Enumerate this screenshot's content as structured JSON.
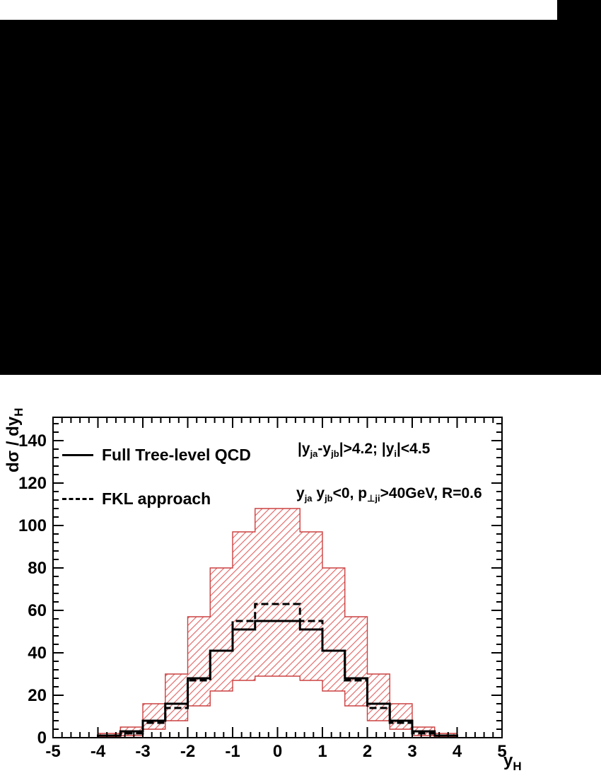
{
  "page": {
    "top_mask_color": "#000000",
    "background_color": "#ffffff"
  },
  "chart_data": {
    "type": "histogram-step",
    "title": "",
    "xlabel": {
      "main": "y",
      "sub": "H"
    },
    "ylabel": {
      "main": "dσ / dy",
      "sub": "H"
    },
    "xlim": [
      -5,
      5
    ],
    "ylim": [
      0,
      151
    ],
    "x_major_ticks": [
      -5,
      -4,
      -3,
      -2,
      -1,
      0,
      1,
      2,
      3,
      4,
      5
    ],
    "x_minor_step": 0.2,
    "y_major_ticks": [
      0,
      20,
      40,
      60,
      80,
      100,
      120,
      140
    ],
    "y_minor_step": 4,
    "grid": false,
    "legend_position": "top-left",
    "bin_edges": [
      -5,
      -4.5,
      -4,
      -3.5,
      -3,
      -2.5,
      -2,
      -1.5,
      -1,
      -0.5,
      0,
      0.5,
      1,
      1.5,
      2,
      2.5,
      3,
      3.5,
      4,
      4.5,
      5
    ],
    "series": [
      {
        "name": "Full Tree-level QCD",
        "style": "solid",
        "color": "#000000",
        "values": [
          0,
          0,
          1,
          3,
          8,
          16,
          28,
          41,
          51,
          55,
          55,
          51,
          41,
          28,
          16,
          8,
          3,
          1,
          0,
          0
        ]
      },
      {
        "name": "FKL approach",
        "style": "dashed",
        "color": "#000000",
        "values": [
          0,
          0,
          1,
          2,
          7,
          14,
          27,
          41,
          55,
          63,
          63,
          55,
          41,
          27,
          14,
          7,
          2,
          1,
          0,
          0
        ]
      }
    ],
    "band": {
      "name": "scale-variation-band",
      "hatch_color": "#e56e6e",
      "edge_color": "#cc4040",
      "upper": [
        0,
        0,
        2,
        5,
        16,
        30,
        57,
        80,
        97,
        108,
        108,
        97,
        80,
        57,
        30,
        16,
        5,
        2,
        0,
        0
      ],
      "lower": [
        0,
        0,
        0.3,
        1,
        4,
        8,
        15,
        22,
        27,
        29,
        29,
        27,
        22,
        15,
        8,
        4,
        1,
        0.3,
        0,
        0
      ]
    },
    "annotations": [
      {
        "segments": [
          {
            "t": "|y"
          },
          {
            "t": "ja",
            "sub": true
          },
          {
            "t": "-y"
          },
          {
            "t": "jb",
            "sub": true
          },
          {
            "t": "|>4.2; |y"
          },
          {
            "t": "i",
            "sub": true
          },
          {
            "t": "|<4.5"
          }
        ]
      },
      {
        "segments": [
          {
            "t": "y"
          },
          {
            "t": "ja",
            "sub": true
          },
          {
            "t": " y"
          },
          {
            "t": "jb",
            "sub": true
          },
          {
            "t": "<0, p"
          },
          {
            "t": "⊥ji",
            "sub": true
          },
          {
            "t": ">40GeV, R=0.6"
          }
        ]
      }
    ]
  }
}
